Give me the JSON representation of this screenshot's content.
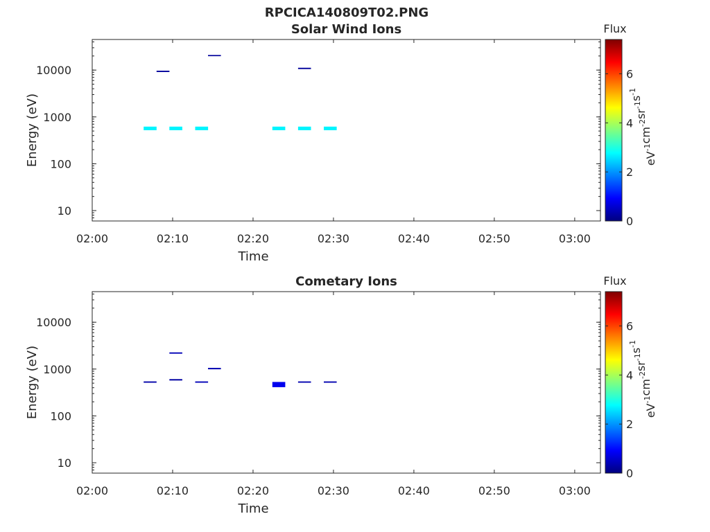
{
  "figure_title": "RPCICA140809T02.PNG",
  "chart_data": [
    {
      "type": "heatmap",
      "title": "Solar Wind Ions",
      "xlabel": "Time",
      "ylabel": "Energy (eV)",
      "x_ticks": [
        "02:00",
        "02:10",
        "02:20",
        "02:30",
        "02:40",
        "02:50",
        "03:00"
      ],
      "x_range_min": [
        0,
        63.2
      ],
      "y_scale": "log",
      "y_ticks": [
        10,
        100,
        1000,
        10000
      ],
      "y_range": [
        6,
        45000
      ],
      "colorbar": {
        "label": "Flux",
        "unit": "eV-1 cm-2 sr-1 s-1",
        "range": [
          0,
          7.4
        ],
        "ticks": [
          0,
          2,
          4,
          6
        ],
        "colormap": "jet"
      },
      "cells": [
        {
          "t_start": 6.4,
          "t_end": 8.0,
          "e_low": 520,
          "e_high": 620,
          "flux": 2.7
        },
        {
          "t_start": 9.6,
          "t_end": 11.2,
          "e_low": 520,
          "e_high": 620,
          "flux": 2.7
        },
        {
          "t_start": 12.8,
          "t_end": 14.4,
          "e_low": 520,
          "e_high": 620,
          "flux": 2.7
        },
        {
          "t_start": 22.4,
          "t_end": 24.0,
          "e_low": 520,
          "e_high": 620,
          "flux": 2.7
        },
        {
          "t_start": 25.6,
          "t_end": 27.2,
          "e_low": 520,
          "e_high": 620,
          "flux": 2.7
        },
        {
          "t_start": 28.8,
          "t_end": 30.4,
          "e_low": 520,
          "e_high": 620,
          "flux": 2.7
        },
        {
          "t_start": 8.0,
          "t_end": 9.6,
          "e_low": 9100,
          "e_high": 9700,
          "flux": 0.2
        },
        {
          "t_start": 14.4,
          "t_end": 16.0,
          "e_low": 19800,
          "e_high": 21000,
          "flux": 0.2
        },
        {
          "t_start": 25.6,
          "t_end": 27.2,
          "e_low": 10500,
          "e_high": 11200,
          "flux": 0.2
        }
      ]
    },
    {
      "type": "heatmap",
      "title": "Cometary Ions",
      "xlabel": "Time",
      "ylabel": "Energy (eV)",
      "x_ticks": [
        "02:00",
        "02:10",
        "02:20",
        "02:30",
        "02:40",
        "02:50",
        "03:00"
      ],
      "x_range_min": [
        0,
        63.2
      ],
      "y_scale": "log",
      "y_ticks": [
        10,
        100,
        1000,
        10000
      ],
      "y_range": [
        6,
        45000
      ],
      "colorbar": {
        "label": "Flux",
        "unit": "eV-1 cm-2 sr-1 s-1",
        "range": [
          0,
          7.4
        ],
        "ticks": [
          0,
          2,
          4,
          6
        ],
        "colormap": "jet"
      },
      "cells": [
        {
          "t_start": 6.4,
          "t_end": 8.0,
          "e_low": 510,
          "e_high": 545,
          "flux": 0.3
        },
        {
          "t_start": 9.6,
          "t_end": 11.2,
          "e_low": 570,
          "e_high": 610,
          "flux": 0.25
        },
        {
          "t_start": 9.6,
          "t_end": 11.2,
          "e_low": 2130,
          "e_high": 2270,
          "flux": 0.4
        },
        {
          "t_start": 12.8,
          "t_end": 14.4,
          "e_low": 510,
          "e_high": 545,
          "flux": 0.4
        },
        {
          "t_start": 14.4,
          "t_end": 16.0,
          "e_low": 990,
          "e_high": 1060,
          "flux": 0.35
        },
        {
          "t_start": 22.4,
          "t_end": 24.0,
          "e_low": 410,
          "e_high": 530,
          "flux": 0.8
        },
        {
          "t_start": 25.6,
          "t_end": 27.2,
          "e_low": 510,
          "e_high": 545,
          "flux": 0.35
        },
        {
          "t_start": 28.8,
          "t_end": 30.4,
          "e_low": 510,
          "e_high": 545,
          "flux": 0.35
        }
      ]
    }
  ]
}
